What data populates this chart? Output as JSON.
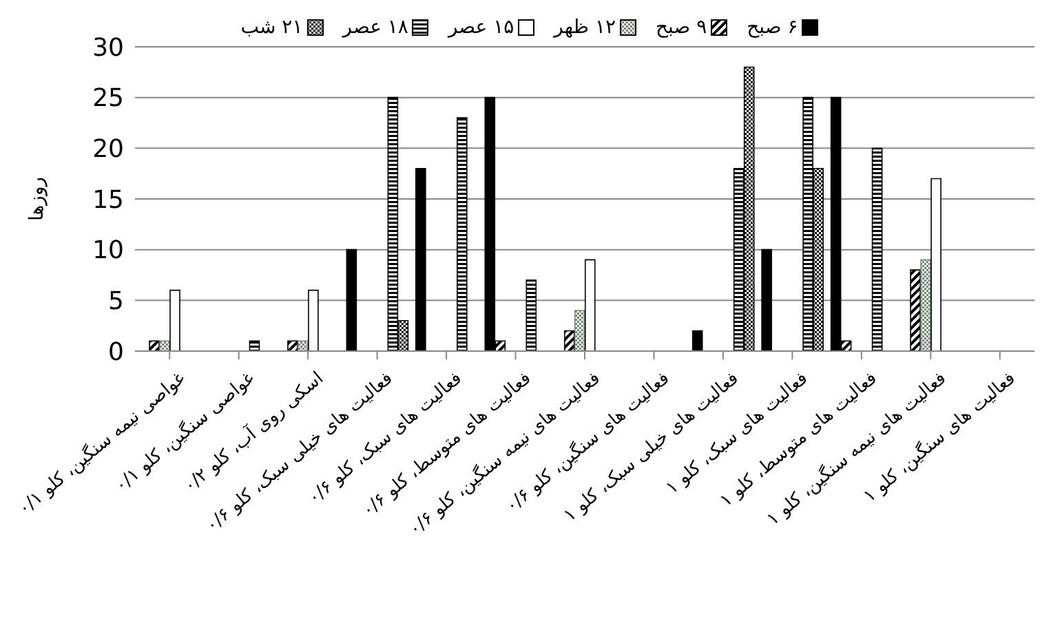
{
  "chart_data": {
    "type": "bar",
    "ylabel": "روزها",
    "categories": [
      "غواصی نیمه سنگین، کلو ۰/۱",
      "غواصی سنگین، کلو ۰/۱",
      "اسکی روی آب، کلو ۰/۲",
      "فعالیت های خیلی سبک، کلو ۰/۶",
      "فعالیت های سبک، کلو ۰/۶",
      "فعالیت های متوسط، کلو ۰/۶",
      "فعالیت های نیمه سنگین، کلو ۰/۶",
      "فعالیت های سنگین، کلو ۰/۶",
      "فعالیت های خیلی سبک، کلو ۱",
      "فعالیت های سبک، کلو ۱",
      "فعالیت های متوسط، کلو ۱",
      "فعالیت های نیمه سنگین، کلو ۱",
      "فعالیت های سنگین، کلو ۱"
    ],
    "series": [
      {
        "name": "۶ صبح",
        "color": "#000000",
        "values": [
          0,
          0,
          0,
          10,
          18,
          25,
          0,
          0,
          2,
          10,
          25,
          0,
          0
        ]
      },
      {
        "name": "۹ صبح",
        "color": "#000000",
        "values": [
          1,
          0,
          1,
          0,
          0,
          1,
          2,
          0,
          0,
          0,
          1,
          8,
          0
        ]
      },
      {
        "name": "۱۲ ظهر",
        "color": "#6f8f6f",
        "values": [
          1,
          0,
          1,
          0,
          0,
          0,
          4,
          0,
          0,
          0,
          0,
          9,
          0
        ]
      },
      {
        "name": "۱۵ عصر",
        "color": "#ffffff",
        "values": [
          6,
          0,
          6,
          0,
          0,
          0,
          9,
          0,
          0,
          0,
          0,
          17,
          0
        ]
      },
      {
        "name": "۱۸ عصر",
        "color": "#000000",
        "values": [
          0,
          1,
          0,
          25,
          23,
          7,
          0,
          0,
          18,
          25,
          20,
          0,
          0
        ]
      },
      {
        "name": "۲۱ شب",
        "color": "#000000",
        "values": [
          0,
          0,
          0,
          3,
          0,
          0,
          0,
          0,
          28,
          18,
          0,
          0,
          0
        ]
      }
    ],
    "ylim": [
      0,
      30
    ],
    "yticks": [
      0,
      5,
      10,
      15,
      20,
      25,
      30
    ],
    "grid": "y",
    "legend": "top"
  }
}
